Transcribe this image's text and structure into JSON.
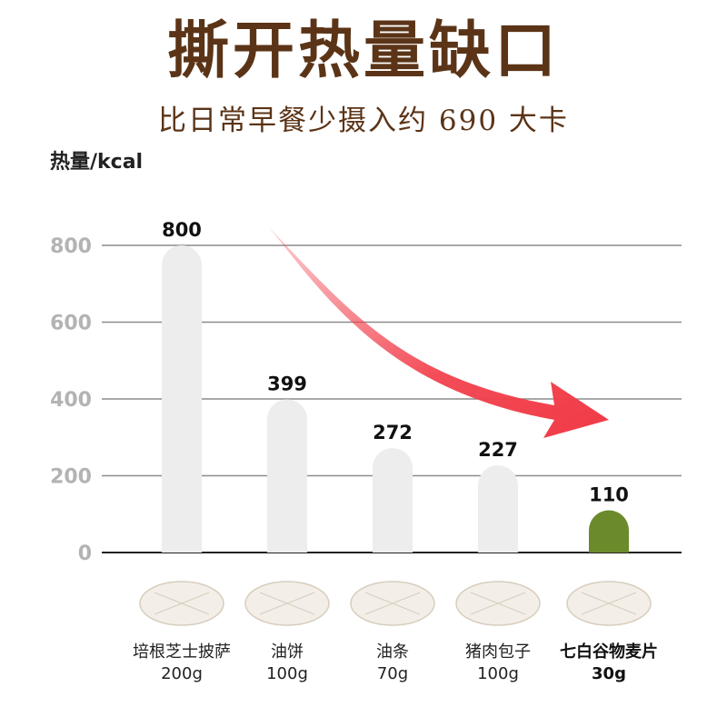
{
  "title": "撕开热量缺口",
  "subtitle": "比日常早餐少摄入约 690 大卡",
  "colors": {
    "title": "#5b3417",
    "bar": "#ededed",
    "highlight_bar": "#6b8a2c",
    "grid": "#8c8c8c",
    "tick": "#b3b3b3",
    "arrow": "#f2434f"
  },
  "chart_data": {
    "type": "bar",
    "ylabel": "热量/kcal",
    "ylim": [
      0,
      800
    ],
    "yticks": [
      0,
      200,
      400,
      600,
      800
    ],
    "grid": true,
    "categories": [
      "培根芝士披萨",
      "油饼",
      "油条",
      "猪肉包子",
      "七白谷物麦片"
    ],
    "weights": [
      "200g",
      "100g",
      "70g",
      "100g",
      "30g"
    ],
    "values": [
      800,
      399,
      272,
      227,
      110
    ],
    "value_labels": [
      "800",
      "399",
      "272",
      "227",
      "110"
    ],
    "highlight_index": 4,
    "food_icons": [
      "pizza-image",
      "scallion-pancake-image",
      "fried-dough-stick-image",
      "pork-bun-image",
      "oat-flakes-image"
    ]
  }
}
